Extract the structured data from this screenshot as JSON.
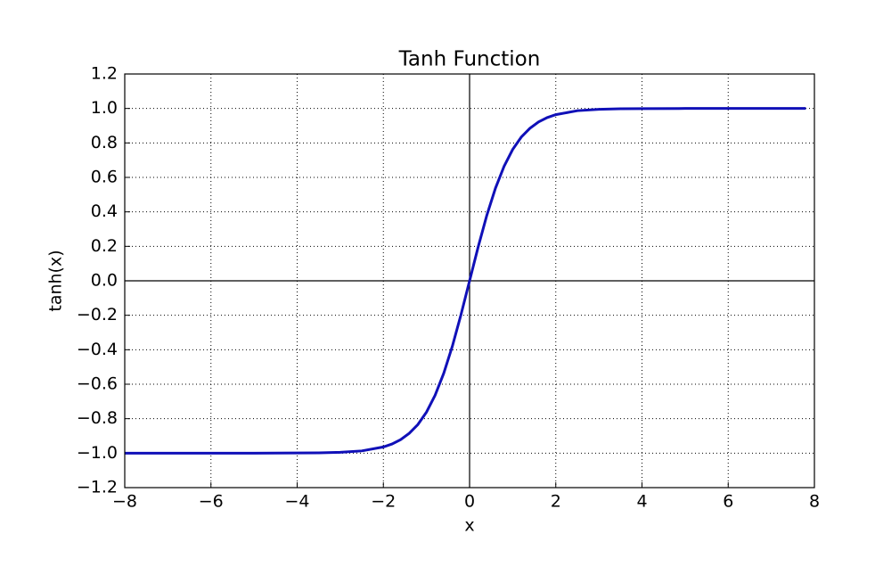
{
  "chart_data": {
    "type": "line",
    "title": "Tanh Function",
    "x_label": "x",
    "y_label": "tanh(x)",
    "x": [
      -8,
      -7,
      -6,
      -5,
      -4,
      -3.5,
      -3,
      -2.5,
      -2,
      -1.8,
      -1.6,
      -1.4,
      -1.2,
      -1,
      -0.8,
      -0.6,
      -0.4,
      -0.2,
      0,
      0.2,
      0.4,
      0.6,
      0.8,
      1,
      1.2,
      1.4,
      1.6,
      1.8,
      2,
      2.5,
      3,
      3.5,
      4,
      5,
      6,
      7,
      7.8
    ],
    "series": [
      {
        "name": "tanh",
        "color": "#1010b8",
        "values": [
          -1.0,
          -1.0,
          -1.0,
          -1.0,
          -0.999,
          -0.998,
          -0.995,
          -0.987,
          -0.964,
          -0.947,
          -0.922,
          -0.885,
          -0.834,
          -0.762,
          -0.664,
          -0.537,
          -0.38,
          -0.197,
          0,
          0.197,
          0.38,
          0.537,
          0.664,
          0.762,
          0.834,
          0.885,
          0.922,
          0.947,
          0.964,
          0.987,
          0.995,
          0.998,
          0.999,
          1.0,
          1.0,
          1.0,
          1.0
        ]
      }
    ],
    "xlim": [
      -8,
      8
    ],
    "xticks": [
      {
        "value": -8,
        "label": "−8"
      },
      {
        "value": -6,
        "label": "−6"
      },
      {
        "value": -4,
        "label": "−4"
      },
      {
        "value": -2,
        "label": "−2"
      },
      0,
      2,
      4,
      6,
      8
    ],
    "ylim": [
      -1.2,
      1.2
    ],
    "yticks": [
      {
        "value": -1.2,
        "label": "−1.2"
      },
      {
        "value": -1.0,
        "label": "−1.0"
      },
      {
        "value": -0.8,
        "label": "−0.8"
      },
      {
        "value": -0.6,
        "label": "−0.6"
      },
      {
        "value": -0.4,
        "label": "−0.4"
      },
      {
        "value": -0.2,
        "label": "−0.2"
      },
      {
        "value": 0,
        "label": "0.0"
      },
      {
        "value": 0.2,
        "label": "0.2"
      },
      {
        "value": 0.4,
        "label": "0.4"
      },
      {
        "value": 0.6,
        "label": "0.6"
      },
      {
        "value": 0.8,
        "label": "0.8"
      },
      {
        "value": 1.0,
        "label": "1.0"
      },
      1.2
    ],
    "grid": true
  }
}
